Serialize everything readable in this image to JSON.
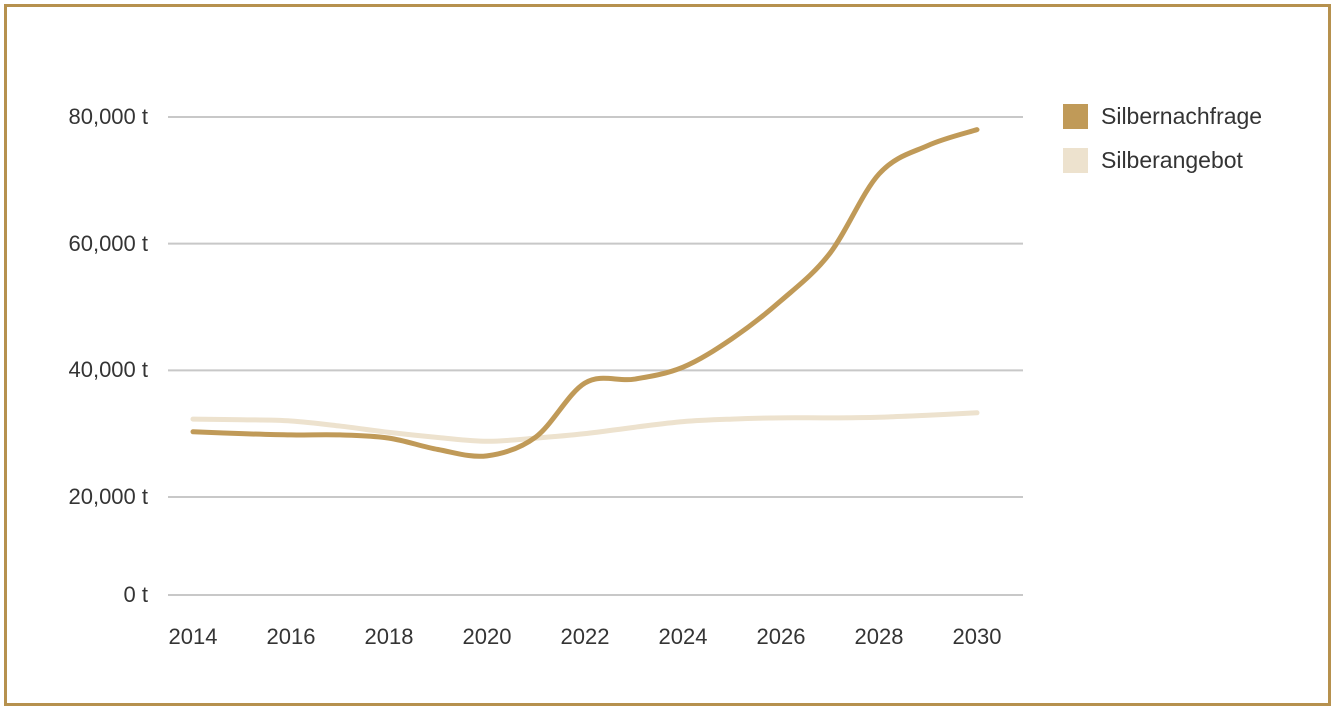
{
  "panel": {
    "background": "#FFFFFF",
    "border_color": "#B6914E"
  },
  "legend": {
    "items": [
      {
        "label": "Silbernachfrage",
        "color": "#C09A58"
      },
      {
        "label": "Silberangebot",
        "color": "#EDE2CE"
      }
    ]
  },
  "chart_data": {
    "type": "line",
    "title": "",
    "unit": "t",
    "x": [
      2014,
      2015,
      2016,
      2017,
      2018,
      2019,
      2020,
      2021,
      2022,
      2023,
      2024,
      2025,
      2026,
      2027,
      2028,
      2029,
      2030
    ],
    "series": [
      {
        "name": "Silbernachfrage",
        "color": "#C09A58",
        "values": [
          30300,
          30000,
          29800,
          29800,
          29300,
          27500,
          26500,
          29500,
          38000,
          38600,
          40500,
          45000,
          51000,
          58500,
          71000,
          75500,
          78000
        ]
      },
      {
        "name": "Silberangebot",
        "color": "#EDE2CE",
        "values": [
          32300,
          32200,
          32000,
          31200,
          30200,
          29400,
          28800,
          29300,
          30000,
          31000,
          31900,
          32300,
          32500,
          32500,
          32600,
          32900,
          33300
        ]
      }
    ],
    "ytick_labels": [
      "80,000 t",
      "60,000 t",
      "40,000 t",
      "20,000 t",
      "0 t"
    ],
    "ytick_values": [
      80000,
      60000,
      40000,
      20000,
      0
    ],
    "xtick_labels": [
      "2014",
      "2016",
      "2018",
      "2020",
      "2022",
      "2024",
      "2026",
      "2028",
      "2030"
    ],
    "ylim": [
      0,
      80000
    ],
    "xlim": [
      2014,
      2030
    ],
    "grid": "horizontal",
    "grid_color": "#C8C8C8",
    "legend_position": "right"
  }
}
